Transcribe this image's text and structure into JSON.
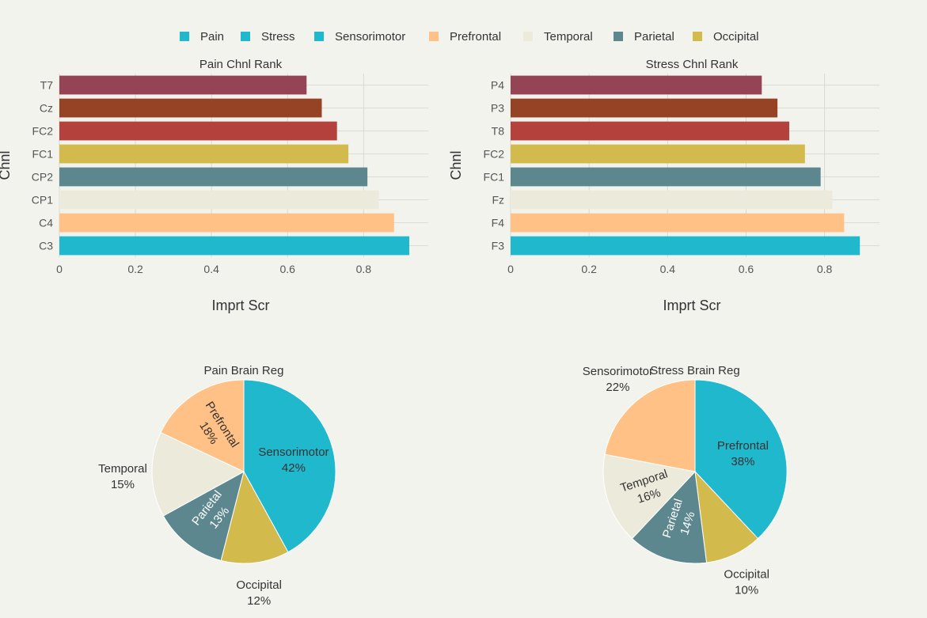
{
  "legend": {
    "items": [
      {
        "label": "Pain",
        "color": "#1fb8cd"
      },
      {
        "label": "Stress",
        "color": "#1fb8cd"
      },
      {
        "label": "Sensorimotor",
        "color": "#1fb8cd"
      },
      {
        "label": "Prefrontal",
        "color": "#ffc185"
      },
      {
        "label": "Temporal",
        "color": "#eceadb"
      },
      {
        "label": "Parietal",
        "color": "#5d878f"
      },
      {
        "label": "Occipital",
        "color": "#d2ba4c"
      }
    ]
  },
  "chart_data": [
    {
      "type": "bar",
      "orientation": "horizontal",
      "title": "Pain Chnl Rank",
      "xlabel": "Imprt Scr",
      "ylabel": "Chnl",
      "xlim": [
        0,
        0.97
      ],
      "xticks": [
        "0",
        "0.2",
        "0.4",
        "0.6",
        "0.8"
      ],
      "xtick_values": [
        0,
        0.2,
        0.4,
        0.6,
        0.8
      ],
      "grid": true,
      "categories": [
        "T7",
        "Cz",
        "FC2",
        "FC1",
        "CP2",
        "CP1",
        "C4",
        "C3"
      ],
      "values": [
        0.65,
        0.69,
        0.73,
        0.76,
        0.81,
        0.84,
        0.88,
        0.92
      ],
      "colors": [
        "#944454",
        "#964325",
        "#b4413c",
        "#d2ba4c",
        "#5d878f",
        "#eceadb",
        "#ffc185",
        "#1fb8cd"
      ]
    },
    {
      "type": "bar",
      "orientation": "horizontal",
      "title": "Stress Chnl Rank",
      "xlabel": "Imprt Scr",
      "ylabel": "Chnl",
      "xlim": [
        0,
        0.94
      ],
      "xticks": [
        "0",
        "0.2",
        "0.4",
        "0.6",
        "0.8"
      ],
      "xtick_values": [
        0,
        0.2,
        0.4,
        0.6,
        0.8
      ],
      "grid": true,
      "categories": [
        "P4",
        "P3",
        "T8",
        "FC2",
        "FC1",
        "Fz",
        "F4",
        "F3"
      ],
      "values": [
        0.64,
        0.68,
        0.71,
        0.75,
        0.79,
        0.82,
        0.85,
        0.89
      ],
      "colors": [
        "#944454",
        "#964325",
        "#b4413c",
        "#d2ba4c",
        "#5d878f",
        "#eceadb",
        "#ffc185",
        "#1fb8cd"
      ]
    },
    {
      "type": "pie",
      "title": "Pain Brain Reg",
      "labels": [
        "Sensorimotor",
        "Occipital",
        "Parietal",
        "Temporal",
        "Prefrontal"
      ],
      "values": [
        42,
        12,
        13,
        15,
        18
      ],
      "percent_labels": [
        "42%",
        "12%",
        "13%",
        "15%",
        "18%"
      ],
      "colors": [
        "#1fb8cd",
        "#d2ba4c",
        "#5d878f",
        "#eceadb",
        "#ffc185"
      ],
      "label_positions": [
        "inside",
        "outside",
        "inside",
        "outside",
        "inside"
      ]
    },
    {
      "type": "pie",
      "title": "Stress Brain Reg",
      "labels": [
        "Prefrontal",
        "Occipital",
        "Parietal",
        "Temporal",
        "Sensorimotor"
      ],
      "values": [
        38,
        10,
        14,
        16,
        22
      ],
      "percent_labels": [
        "38%",
        "10%",
        "14%",
        "16%",
        "22%"
      ],
      "colors": [
        "#1fb8cd",
        "#d2ba4c",
        "#5d878f",
        "#eceadb",
        "#ffc185"
      ],
      "label_positions": [
        "inside",
        "outside",
        "inside",
        "inside",
        "outside"
      ]
    }
  ]
}
